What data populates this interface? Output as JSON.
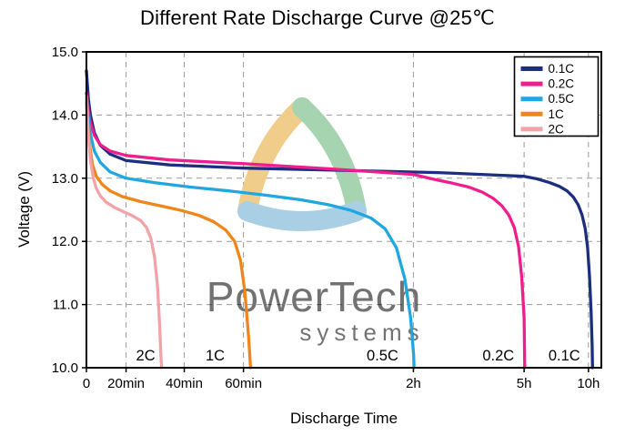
{
  "chart_data": {
    "type": "line",
    "title": "Different Rate Discharge Curve @25℃",
    "xlabel": "Discharge Time",
    "ylabel": "Voltage (V)",
    "ylim": [
      10.0,
      15.0
    ],
    "grid": "dashed",
    "legend_position": "top-right",
    "x_unit": "minutes",
    "x_ticks": [
      {
        "label": "0",
        "minutes": 0,
        "pos": 0.0
      },
      {
        "label": "20min",
        "minutes": 20,
        "pos": 0.077
      },
      {
        "label": "40min",
        "minutes": 40,
        "pos": 0.19
      },
      {
        "label": "60min",
        "minutes": 60,
        "pos": 0.305
      },
      {
        "label": "2h",
        "minutes": 120,
        "pos": 0.635
      },
      {
        "label": "5h",
        "minutes": 300,
        "pos": 0.85
      },
      {
        "label": "10h",
        "minutes": 600,
        "pos": 0.975
      }
    ],
    "y_ticks": [
      {
        "label": "10.0",
        "v": 10.0
      },
      {
        "label": "11.0",
        "v": 11.0
      },
      {
        "label": "12.0",
        "v": 12.0
      },
      {
        "label": "13.0",
        "v": 13.0
      },
      {
        "label": "14.0",
        "v": 14.0
      },
      {
        "label": "15.0",
        "v": 15.0
      }
    ],
    "series": [
      {
        "name": "0.1C",
        "color": "#1c2e7f",
        "points": [
          [
            0,
            14.7
          ],
          [
            1,
            14.25
          ],
          [
            2,
            14.0
          ],
          [
            4,
            13.72
          ],
          [
            7,
            13.52
          ],
          [
            12,
            13.38
          ],
          [
            20,
            13.28
          ],
          [
            35,
            13.21
          ],
          [
            60,
            13.16
          ],
          [
            100,
            13.12
          ],
          [
            160,
            13.09
          ],
          [
            230,
            13.06
          ],
          [
            300,
            13.03
          ],
          [
            360,
            12.99
          ],
          [
            420,
            12.93
          ],
          [
            465,
            12.87
          ],
          [
            500,
            12.8
          ],
          [
            530,
            12.7
          ],
          [
            552,
            12.58
          ],
          [
            570,
            12.42
          ],
          [
            585,
            12.2
          ],
          [
            596,
            11.9
          ],
          [
            605,
            11.45
          ],
          [
            612,
            10.9
          ],
          [
            617,
            10.35
          ],
          [
            619,
            10.0
          ]
        ]
      },
      {
        "name": "0.2C",
        "color": "#ee1e8e",
        "points": [
          [
            0,
            14.35
          ],
          [
            1,
            14.05
          ],
          [
            2,
            13.88
          ],
          [
            4,
            13.68
          ],
          [
            7,
            13.53
          ],
          [
            12,
            13.43
          ],
          [
            20,
            13.36
          ],
          [
            35,
            13.29
          ],
          [
            60,
            13.23
          ],
          [
            90,
            13.15
          ],
          [
            120,
            13.06
          ],
          [
            150,
            12.99
          ],
          [
            180,
            12.93
          ],
          [
            210,
            12.86
          ],
          [
            232,
            12.78
          ],
          [
            250,
            12.68
          ],
          [
            264,
            12.56
          ],
          [
            275,
            12.42
          ],
          [
            284,
            12.22
          ],
          [
            291,
            11.92
          ],
          [
            296,
            11.45
          ],
          [
            300,
            10.8
          ],
          [
            302,
            10.25
          ],
          [
            303,
            10.0
          ]
        ]
      },
      {
        "name": "0.5C",
        "color": "#1fa7e0",
        "points": [
          [
            0,
            14.25
          ],
          [
            1,
            13.95
          ],
          [
            2,
            13.7
          ],
          [
            4,
            13.43
          ],
          [
            7,
            13.25
          ],
          [
            12,
            13.1
          ],
          [
            20,
            13.0
          ],
          [
            30,
            12.93
          ],
          [
            42,
            12.86
          ],
          [
            55,
            12.8
          ],
          [
            68,
            12.73
          ],
          [
            80,
            12.66
          ],
          [
            90,
            12.58
          ],
          [
            98,
            12.49
          ],
          [
            105,
            12.37
          ],
          [
            110,
            12.2
          ],
          [
            114,
            11.9
          ],
          [
            117,
            11.4
          ],
          [
            119,
            10.8
          ],
          [
            120.5,
            10.2
          ],
          [
            121,
            10.0
          ]
        ]
      },
      {
        "name": "1C",
        "color": "#f0861a",
        "points": [
          [
            0,
            14.2
          ],
          [
            0.7,
            13.85
          ],
          [
            1.5,
            13.55
          ],
          [
            3,
            13.22
          ],
          [
            5,
            13.03
          ],
          [
            8,
            12.9
          ],
          [
            12,
            12.8
          ],
          [
            18,
            12.71
          ],
          [
            25,
            12.63
          ],
          [
            32,
            12.56
          ],
          [
            39,
            12.49
          ],
          [
            45,
            12.41
          ],
          [
            50,
            12.31
          ],
          [
            54,
            12.18
          ],
          [
            57,
            12.0
          ],
          [
            59,
            11.7
          ],
          [
            60.5,
            11.2
          ],
          [
            61.8,
            10.5
          ],
          [
            62.5,
            10.0
          ]
        ]
      },
      {
        "name": "2C",
        "color": "#f2a3a8",
        "points": [
          [
            0,
            14.3
          ],
          [
            0.5,
            13.95
          ],
          [
            1,
            13.65
          ],
          [
            2,
            13.28
          ],
          [
            3.5,
            13.0
          ],
          [
            5,
            12.84
          ],
          [
            7,
            12.72
          ],
          [
            10,
            12.62
          ],
          [
            14,
            12.54
          ],
          [
            18,
            12.48
          ],
          [
            22,
            12.41
          ],
          [
            25,
            12.33
          ],
          [
            27,
            12.22
          ],
          [
            28.5,
            12.05
          ],
          [
            29.8,
            11.75
          ],
          [
            30.8,
            11.3
          ],
          [
            31.5,
            10.7
          ],
          [
            32,
            10.15
          ],
          [
            32.2,
            10.0
          ]
        ]
      }
    ],
    "curve_labels": [
      {
        "text": "2C",
        "pos": 0.115,
        "v": 10.2
      },
      {
        "text": "1C",
        "pos": 0.25,
        "v": 10.2
      },
      {
        "text": "0.5C",
        "pos": 0.575,
        "v": 10.2
      },
      {
        "text": "0.2C",
        "pos": 0.8,
        "v": 10.2
      },
      {
        "text": "0.1C",
        "pos": 0.928,
        "v": 10.2
      }
    ]
  },
  "watermark": {
    "line1": "PowerTech",
    "line2": "systems"
  }
}
